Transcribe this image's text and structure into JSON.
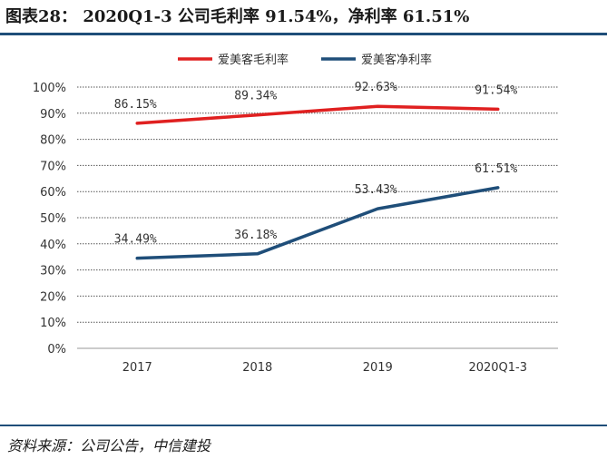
{
  "title": "图表28： 2020Q1-3 公司毛利率 91.54%，净利率 61.51%",
  "source": "资料来源：公司公告，中信建投",
  "chart_data": {
    "type": "line",
    "categories": [
      "2017",
      "2018",
      "2019",
      "2020Q1-3"
    ],
    "series": [
      {
        "name": "爱美客毛利率",
        "color": "#e02020",
        "values": [
          86.15,
          89.34,
          92.63,
          91.54
        ],
        "labels": [
          "86.15%",
          "89.34%",
          "92.63%",
          "91.54%"
        ]
      },
      {
        "name": "爱美客净利率",
        "color": "#1f4e79",
        "values": [
          34.49,
          36.18,
          53.43,
          61.51
        ],
        "labels": [
          "34.49%",
          "36.18%",
          "53.43%",
          "61.51%"
        ]
      }
    ],
    "ylim": [
      0,
      100
    ],
    "yticks": [
      0,
      10,
      20,
      30,
      40,
      50,
      60,
      70,
      80,
      90,
      100
    ],
    "ytick_labels": [
      "0%",
      "10%",
      "20%",
      "30%",
      "40%",
      "50%",
      "60%",
      "70%",
      "80%",
      "90%",
      "100%"
    ],
    "legend": "top"
  }
}
